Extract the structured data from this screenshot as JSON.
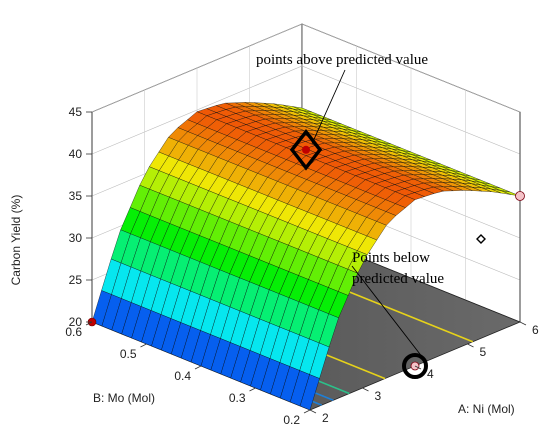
{
  "chart_data": {
    "type": "surface",
    "zlabel": "Carbon Yield (%)",
    "xlabel": "A: Ni (Mol)",
    "ylabel": "B: Mo (Mol)",
    "x_ticks": [
      "2",
      "3",
      "4",
      "5",
      "6"
    ],
    "y_ticks": [
      "0.2",
      "0.3",
      "0.4",
      "0.5",
      "0.6"
    ],
    "z_ticks": [
      "20",
      "25",
      "30",
      "35",
      "40",
      "45"
    ],
    "xlim": [
      2,
      6
    ],
    "ylim": [
      0.2,
      0.6
    ],
    "zlim": [
      20,
      45
    ],
    "surface_profile_x": [
      2,
      2.5,
      3,
      3.5,
      4,
      4.5,
      5,
      5.5,
      6
    ],
    "surface_profile_z": [
      20,
      29,
      35,
      38.5,
      39.8,
      39.5,
      38.3,
      36.8,
      35
    ],
    "design_points": [
      {
        "x": 2,
        "y": 0.6,
        "z": 20,
        "position": "below"
      },
      {
        "x": 4,
        "y": 0.4,
        "z": 40.5,
        "position": "above"
      },
      {
        "x": 6,
        "y": 0.2,
        "z": 35,
        "position": "below"
      },
      {
        "x": 4,
        "y": 0.2,
        "z": 20,
        "position": "below"
      }
    ],
    "annotations": [
      {
        "text": "points above predicted value"
      },
      {
        "text": "Points below"
      },
      {
        "text": "predicted value"
      }
    ],
    "colors": {
      "floor": "#595959",
      "contour_low": "#1f7fd6",
      "contour_mid": "#2cc08a",
      "contour_high": "#e6d21a",
      "point": "#c00000",
      "point_light": "#f4c2c8"
    }
  }
}
